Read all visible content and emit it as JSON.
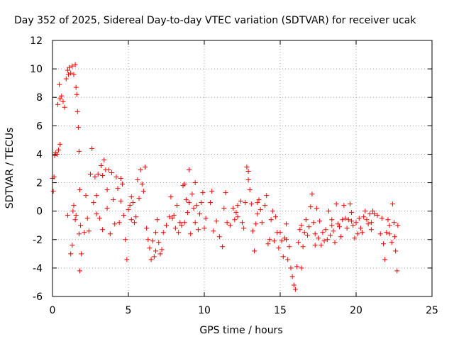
{
  "chart_data": {
    "type": "scatter",
    "title": "Day 352 of 2025, Sidereal Day-to-day VTEC variation (SDTVAR) for receiver ucak",
    "xlabel": "GPS time / hours",
    "ylabel": "SDTVAR / TECUs",
    "xlim": [
      0,
      25
    ],
    "ylim": [
      -6,
      12
    ],
    "xticks": [
      0,
      5,
      10,
      15,
      20,
      25
    ],
    "yticks": [
      -6,
      -4,
      -2,
      0,
      2,
      4,
      6,
      8,
      10,
      12
    ],
    "grid": true,
    "marker": "+",
    "color": "#ff0000",
    "series": [
      {
        "name": "ucak",
        "points": [
          [
            0.0,
            2.3
          ],
          [
            0.05,
            1.4
          ],
          [
            0.1,
            2.4
          ],
          [
            0.15,
            3.9
          ],
          [
            0.2,
            4.1
          ],
          [
            0.3,
            4.0
          ],
          [
            0.35,
            7.5
          ],
          [
            0.4,
            4.3
          ],
          [
            0.45,
            8.9
          ],
          [
            0.5,
            7.9
          ],
          [
            0.5,
            4.7
          ],
          [
            0.6,
            8.1
          ],
          [
            0.7,
            7.7
          ],
          [
            0.8,
            7.3
          ],
          [
            0.9,
            9.3
          ],
          [
            1.0,
            9.9
          ],
          [
            1.05,
            9.6
          ],
          [
            1.1,
            10.1
          ],
          [
            1.2,
            9.7
          ],
          [
            1.3,
            10.2
          ],
          [
            1.4,
            9.6
          ],
          [
            1.5,
            10.3
          ],
          [
            1.55,
            8.7
          ],
          [
            1.6,
            8.2
          ],
          [
            1.65,
            7.0
          ],
          [
            1.7,
            5.9
          ],
          [
            1.75,
            4.2
          ],
          [
            1.8,
            1.5
          ],
          [
            1.85,
            -1.0
          ],
          [
            1.9,
            -3.0
          ],
          [
            1.8,
            -4.2
          ],
          [
            1.2,
            -3.0
          ],
          [
            1.3,
            -2.4
          ],
          [
            1.4,
            0.4
          ],
          [
            1.0,
            -0.3
          ],
          [
            1.5,
            -0.6
          ],
          [
            2.1,
            -1.5
          ],
          [
            2.2,
            1.1
          ],
          [
            2.3,
            -0.5
          ],
          [
            2.4,
            -1.4
          ],
          [
            2.5,
            2.6
          ],
          [
            2.6,
            4.4
          ],
          [
            2.7,
            0.6
          ],
          [
            2.8,
            2.4
          ],
          [
            2.9,
            1.1
          ],
          [
            3.0,
            2.6
          ],
          [
            3.1,
            -0.5
          ],
          [
            3.2,
            3.2
          ],
          [
            3.3,
            2.5
          ],
          [
            3.4,
            3.6
          ],
          [
            3.5,
            2.9
          ],
          [
            3.6,
            1.5
          ],
          [
            3.7,
            2.9
          ],
          [
            3.8,
            -1.6
          ],
          [
            3.9,
            2.7
          ],
          [
            4.0,
            0.8
          ],
          [
            4.1,
            -0.9
          ],
          [
            4.2,
            2.4
          ],
          [
            4.3,
            1.6
          ],
          [
            4.4,
            -0.8
          ],
          [
            4.5,
            0.7
          ],
          [
            4.6,
            1.9
          ],
          [
            4.7,
            -0.3
          ],
          [
            4.8,
            -2.0
          ],
          [
            4.9,
            -3.4
          ],
          [
            5.0,
            0.1
          ],
          [
            5.1,
            0.4
          ],
          [
            5.2,
            -0.6
          ],
          [
            5.3,
            0.6
          ],
          [
            5.4,
            -0.8
          ],
          [
            5.5,
            -0.4
          ],
          [
            5.6,
            2.2
          ],
          [
            5.7,
            0.9
          ],
          [
            5.8,
            2.9
          ],
          [
            5.9,
            1.9
          ],
          [
            6.0,
            1.4
          ],
          [
            6.1,
            3.1
          ],
          [
            6.2,
            -1.2
          ],
          [
            6.3,
            -2.0
          ],
          [
            6.4,
            -2.6
          ],
          [
            6.5,
            -3.4
          ],
          [
            6.6,
            -2.1
          ],
          [
            6.7,
            -3.2
          ],
          [
            6.8,
            -1.5
          ],
          [
            6.9,
            -0.6
          ],
          [
            7.0,
            -2.2
          ],
          [
            7.1,
            -3.0
          ],
          [
            7.2,
            -2.7
          ],
          [
            7.3,
            -1.5
          ],
          [
            7.5,
            -1.0
          ],
          [
            7.7,
            -0.4
          ],
          [
            7.8,
            1.0
          ],
          [
            7.9,
            -0.5
          ],
          [
            8.0,
            -0.3
          ],
          [
            8.1,
            -1.2
          ],
          [
            8.2,
            0.4
          ],
          [
            8.3,
            -1.5
          ],
          [
            8.4,
            -0.8
          ],
          [
            8.5,
            -1.0
          ],
          [
            8.6,
            1.8
          ],
          [
            8.7,
            1.9
          ],
          [
            8.8,
            0.8
          ],
          [
            8.9,
            -0.1
          ],
          [
            9.0,
            2.9
          ],
          [
            9.1,
            -1.6
          ],
          [
            9.2,
            1.2
          ],
          [
            9.3,
            0.2
          ],
          [
            9.4,
            -0.8
          ],
          [
            9.5,
            0.4
          ],
          [
            9.6,
            -1.3
          ],
          [
            9.7,
            -0.2
          ],
          [
            9.8,
            0.6
          ],
          [
            9.9,
            1.3
          ],
          [
            10.0,
            -1.2
          ],
          [
            10.1,
            -0.5
          ],
          [
            10.4,
            0.6
          ],
          [
            10.5,
            1.4
          ],
          [
            10.6,
            -1.4
          ],
          [
            10.8,
            -0.7
          ],
          [
            11.0,
            -1.8
          ],
          [
            11.2,
            -2.5
          ],
          [
            11.3,
            0.2
          ],
          [
            11.4,
            1.3
          ],
          [
            11.5,
            -0.8
          ],
          [
            11.7,
            -1.0
          ],
          [
            11.9,
            0.2
          ],
          [
            12.0,
            -0.6
          ],
          [
            12.1,
            -0.1
          ],
          [
            12.2,
            0.4
          ],
          [
            12.4,
            0.7
          ],
          [
            12.5,
            -0.8
          ],
          [
            12.6,
            -1.2
          ],
          [
            12.7,
            0.6
          ],
          [
            12.8,
            3.1
          ],
          [
            12.9,
            2.8
          ],
          [
            13.0,
            1.5
          ],
          [
            13.1,
            0.5
          ],
          [
            13.2,
            -1.4
          ],
          [
            13.3,
            -2.8
          ],
          [
            13.4,
            -0.9
          ],
          [
            13.5,
            -0.2
          ],
          [
            13.6,
            0.8
          ],
          [
            13.7,
            0.1
          ],
          [
            13.8,
            -0.8
          ],
          [
            14.0,
            0.4
          ],
          [
            14.1,
            1.1
          ],
          [
            14.2,
            -2.3
          ],
          [
            14.3,
            -2.0
          ],
          [
            14.4,
            -0.6
          ],
          [
            14.5,
            0.0
          ],
          [
            14.6,
            -2.1
          ],
          [
            14.8,
            -1.5
          ],
          [
            14.9,
            -2.6
          ],
          [
            15.0,
            -1.5
          ],
          [
            15.1,
            -2.1
          ],
          [
            15.2,
            -3.2
          ],
          [
            15.3,
            -1.9
          ],
          [
            15.4,
            -0.9
          ],
          [
            15.5,
            -3.4
          ],
          [
            15.6,
            -2.5
          ],
          [
            15.7,
            -4.0
          ],
          [
            15.8,
            -4.6
          ],
          [
            15.9,
            -5.2
          ],
          [
            16.0,
            -5.5
          ],
          [
            16.1,
            -3.9
          ],
          [
            16.2,
            -2.2
          ],
          [
            16.3,
            -1.3
          ],
          [
            16.4,
            -4.0
          ],
          [
            16.5,
            -2.5
          ],
          [
            16.6,
            -1.5
          ],
          [
            16.7,
            -0.6
          ],
          [
            16.8,
            -1.7
          ],
          [
            16.9,
            -1.1
          ],
          [
            17.0,
            0.3
          ],
          [
            17.1,
            1.2
          ],
          [
            17.2,
            -0.8
          ],
          [
            17.3,
            -1.6
          ],
          [
            17.4,
            0.2
          ],
          [
            17.5,
            -1.9
          ],
          [
            17.6,
            -0.7
          ],
          [
            17.7,
            -2.4
          ],
          [
            17.8,
            -1.5
          ],
          [
            17.9,
            -2.1
          ],
          [
            18.0,
            -1.3
          ],
          [
            18.1,
            -2.0
          ],
          [
            18.2,
            0.0
          ],
          [
            18.3,
            -1.7
          ],
          [
            18.4,
            -1.0
          ],
          [
            18.5,
            -1.4
          ],
          [
            18.6,
            -2.2
          ],
          [
            18.7,
            0.5
          ],
          [
            18.8,
            -0.9
          ],
          [
            18.9,
            -1.1
          ],
          [
            19.0,
            -1.8
          ],
          [
            19.1,
            -0.6
          ],
          [
            19.2,
            0.4
          ],
          [
            19.3,
            -0.5
          ],
          [
            19.4,
            -1.2
          ],
          [
            19.5,
            -0.6
          ],
          [
            19.6,
            0.5
          ],
          [
            19.7,
            -0.7
          ],
          [
            19.8,
            -1.0
          ],
          [
            19.9,
            -1.9
          ],
          [
            20.0,
            -0.8
          ],
          [
            20.1,
            -1.6
          ],
          [
            20.2,
            -0.5
          ],
          [
            20.3,
            -1.2
          ],
          [
            20.4,
            -1.5
          ],
          [
            20.5,
            -0.4
          ],
          [
            20.6,
            0.0
          ],
          [
            20.7,
            -0.6
          ],
          [
            20.8,
            -0.9
          ],
          [
            20.9,
            -0.2
          ],
          [
            21.0,
            -1.3
          ],
          [
            21.1,
            0.0
          ],
          [
            21.2,
            -0.2
          ],
          [
            21.4,
            -0.3
          ],
          [
            21.6,
            -1.6
          ],
          [
            21.7,
            -0.5
          ],
          [
            21.8,
            -2.3
          ],
          [
            21.9,
            -3.4
          ],
          [
            22.0,
            -1.5
          ],
          [
            22.2,
            -1.6
          ],
          [
            22.4,
            0.5
          ],
          [
            22.5,
            -0.8
          ],
          [
            22.55,
            -1.8
          ],
          [
            22.6,
            -2.8
          ],
          [
            22.7,
            -4.2
          ],
          [
            22.75,
            -1.0
          ],
          [
            22.2,
            -1.0
          ],
          [
            22.35,
            -2.2
          ],
          [
            1.35,
            0.0
          ],
          [
            1.55,
            -0.3
          ],
          [
            1.75,
            -1.6
          ],
          [
            2.9,
            -0.2
          ],
          [
            3.3,
            -1.3
          ],
          [
            3.6,
            0.2
          ],
          [
            4.5,
            2.3
          ],
          [
            5.2,
            1.0
          ],
          [
            6.8,
            -2.8
          ],
          [
            8.7,
            -0.8
          ],
          [
            9.0,
            0.6
          ],
          [
            9.4,
            2.0
          ],
          [
            12.2,
            -0.4
          ],
          [
            12.9,
            2.2
          ],
          [
            13.5,
            0.6
          ],
          [
            14.7,
            -0.4
          ],
          [
            15.4,
            -2.0
          ],
          [
            16.4,
            -1.0
          ],
          [
            17.3,
            -2.4
          ],
          [
            18.4,
            -0.6
          ],
          [
            19.7,
            -0.1
          ],
          [
            21.0,
            -0.8
          ],
          [
            22.1,
            -0.6
          ]
        ]
      }
    ]
  }
}
